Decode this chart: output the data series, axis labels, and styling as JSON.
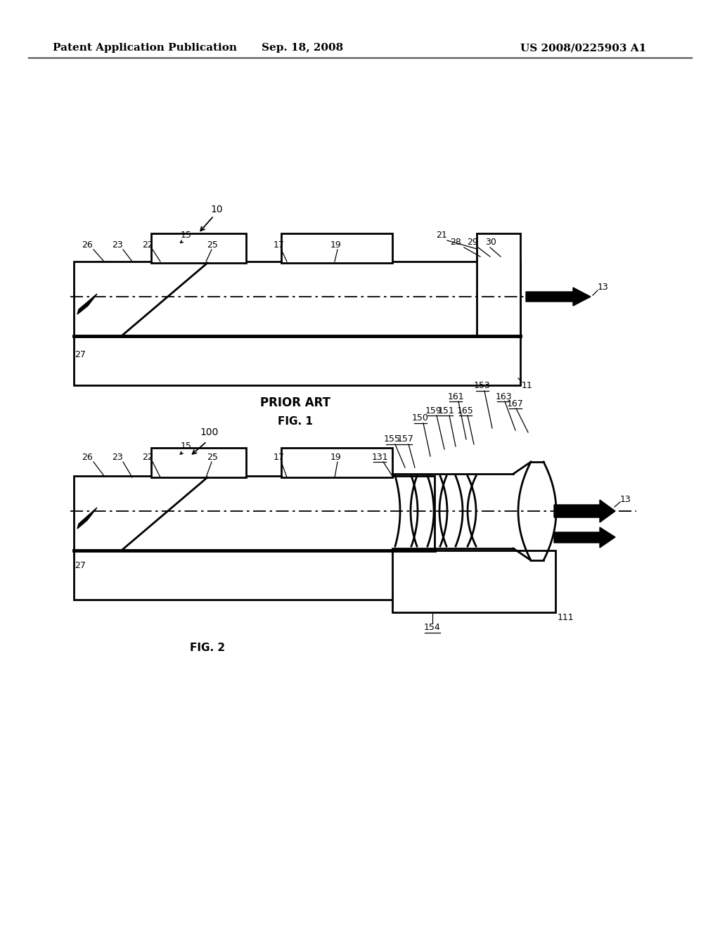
{
  "bg_color": "#ffffff",
  "header_left": "Patent Application Publication",
  "header_mid": "Sep. 18, 2008",
  "header_right": "US 2008/0225903 A1",
  "fig1_label": "FIG. 1",
  "fig2_label": "FIG. 2",
  "prior_art_label": "PRIOR ART"
}
